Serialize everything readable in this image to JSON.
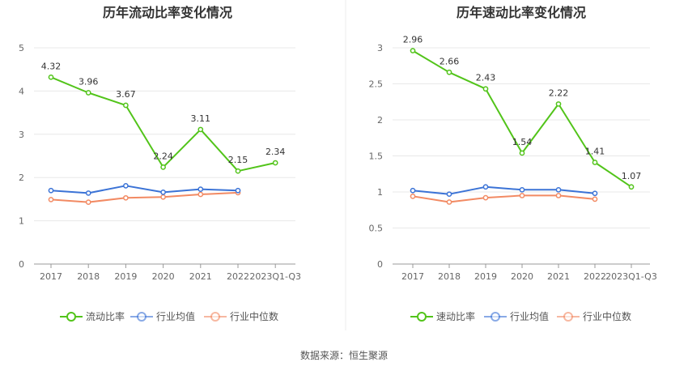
{
  "charts": [
    {
      "type": "line",
      "title": "历年流动比率变化情况",
      "categories": [
        "2017",
        "2018",
        "2019",
        "2020",
        "2021",
        "2022",
        "2023Q1-Q3"
      ],
      "yticks": [
        "0",
        "1",
        "2",
        "3",
        "4",
        "5"
      ],
      "ylim": [
        0,
        5
      ],
      "series": [
        {
          "name": "流动比率",
          "color": "#52c41a",
          "values": [
            4.32,
            3.96,
            3.67,
            2.24,
            3.11,
            2.15,
            2.34
          ],
          "labels": [
            "4.32",
            "3.96",
            "3.67",
            "2.24",
            "3.11",
            "2.15",
            "2.34"
          ]
        },
        {
          "name": "行业均值",
          "color": "#3b73d6",
          "values": [
            1.7,
            1.64,
            1.81,
            1.66,
            1.73,
            1.7,
            null
          ]
        },
        {
          "name": "行业中位数",
          "color": "#f28a63",
          "values": [
            1.49,
            1.43,
            1.53,
            1.55,
            1.61,
            1.65,
            null
          ]
        }
      ],
      "legend": [
        "流动比率",
        "行业均值",
        "行业中位数"
      ]
    },
    {
      "type": "line",
      "title": "历年速动比率变化情况",
      "categories": [
        "2017",
        "2018",
        "2019",
        "2020",
        "2021",
        "2022",
        "2023Q1-Q3"
      ],
      "yticks": [
        "0",
        "0.5",
        "1",
        "1.5",
        "2",
        "2.5",
        "3"
      ],
      "ylim": [
        0,
        3
      ],
      "series": [
        {
          "name": "速动比率",
          "color": "#52c41a",
          "values": [
            2.96,
            2.66,
            2.43,
            1.54,
            2.22,
            1.41,
            1.07
          ],
          "labels": [
            "2.96",
            "2.66",
            "2.43",
            "1.54",
            "2.22",
            "1.41",
            "1.07"
          ]
        },
        {
          "name": "行业均值",
          "color": "#3b73d6",
          "values": [
            1.02,
            0.97,
            1.07,
            1.03,
            1.03,
            0.98,
            null
          ]
        },
        {
          "name": "行业中位数",
          "color": "#f28a63",
          "values": [
            0.94,
            0.86,
            0.92,
            0.95,
            0.95,
            0.9,
            null
          ]
        }
      ],
      "legend": [
        "速动比率",
        "行业均值",
        "行业中位数"
      ]
    }
  ],
  "chart_data": [
    {
      "type": "line",
      "title": "历年流动比率变化情况",
      "categories": [
        "2017",
        "2018",
        "2019",
        "2020",
        "2021",
        "2022",
        "2023Q1-Q3"
      ],
      "series": [
        {
          "name": "流动比率",
          "values": [
            4.32,
            3.96,
            3.67,
            2.24,
            3.11,
            2.15,
            2.34
          ]
        },
        {
          "name": "行业均值",
          "values": [
            1.7,
            1.64,
            1.81,
            1.66,
            1.73,
            1.7,
            null
          ]
        },
        {
          "name": "行业中位数",
          "values": [
            1.49,
            1.43,
            1.53,
            1.55,
            1.61,
            1.65,
            null
          ]
        }
      ],
      "ylim": [
        0,
        5
      ],
      "legend_position": "bottom"
    },
    {
      "type": "line",
      "title": "历年速动比率变化情况",
      "categories": [
        "2017",
        "2018",
        "2019",
        "2020",
        "2021",
        "2022",
        "2023Q1-Q3"
      ],
      "series": [
        {
          "name": "速动比率",
          "values": [
            2.96,
            2.66,
            2.43,
            1.54,
            2.22,
            1.41,
            1.07
          ]
        },
        {
          "name": "行业均值",
          "values": [
            1.02,
            0.97,
            1.07,
            1.03,
            1.03,
            0.98,
            null
          ]
        },
        {
          "name": "行业中位数",
          "values": [
            0.94,
            0.86,
            0.92,
            0.95,
            0.95,
            0.9,
            null
          ]
        }
      ],
      "ylim": [
        0,
        3
      ],
      "legend_position": "bottom"
    }
  ],
  "source": "数据来源：恒生聚源"
}
